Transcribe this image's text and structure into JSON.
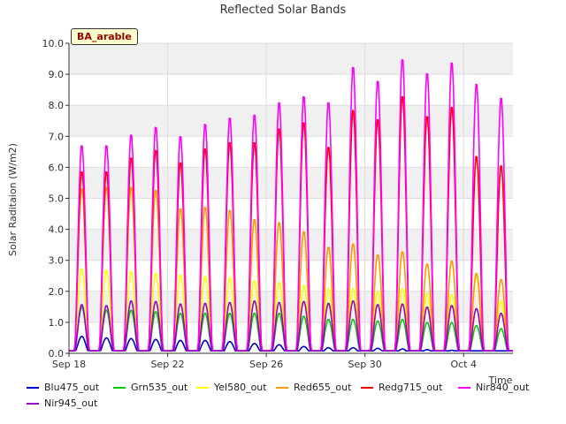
{
  "chart_data": {
    "type": "line",
    "title": "Reflected Solar Bands",
    "ylabel": "Solar Raditaion (W/m2)",
    "xlabel": "Time",
    "badge": "BA_arable",
    "ylim": [
      0,
      10
    ],
    "y_ticks": [
      "0.0",
      "1.0",
      "2.0",
      "3.0",
      "4.0",
      "5.0",
      "6.0",
      "7.0",
      "8.0",
      "9.0",
      "10.0"
    ],
    "x_ticks": [
      {
        "day": 0,
        "label": "Sep 18"
      },
      {
        "day": 4,
        "label": "Sep 22"
      },
      {
        "day": 8,
        "label": "Sep 26"
      },
      {
        "day": 12,
        "label": "Sep 30"
      },
      {
        "day": 16,
        "label": "Oct 4"
      }
    ],
    "days": [
      "Sep 18",
      "Sep 19",
      "Sep 20",
      "Sep 21",
      "Sep 22",
      "Sep 23",
      "Sep 24",
      "Sep 25",
      "Sep 26",
      "Sep 27",
      "Sep 28",
      "Sep 29",
      "Sep 30",
      "Oct 1",
      "Oct 2",
      "Oct 3",
      "Oct 4",
      "Oct 5"
    ],
    "grid": true,
    "legend_position": "bottom",
    "series": [
      {
        "name": "Blu475_out",
        "color": "#0000cc",
        "daily_peak": [
          0.55,
          0.5,
          0.48,
          0.45,
          0.42,
          0.42,
          0.38,
          0.32,
          0.28,
          0.22,
          0.18,
          0.18,
          0.16,
          0.14,
          0.12,
          0.1,
          0.08,
          0.06
        ]
      },
      {
        "name": "Grn535_out",
        "color": "#00cc00",
        "daily_peak": [
          1.5,
          1.4,
          1.4,
          1.35,
          1.3,
          1.3,
          1.3,
          1.3,
          1.3,
          1.2,
          1.1,
          1.1,
          1.05,
          1.1,
          1.0,
          1.0,
          0.9,
          0.8
        ]
      },
      {
        "name": "Yel580_out",
        "color": "#ffff00",
        "daily_peak": [
          2.75,
          2.7,
          2.65,
          2.6,
          2.55,
          2.5,
          2.45,
          2.35,
          2.3,
          2.2,
          2.1,
          2.1,
          2.0,
          2.1,
          1.95,
          1.9,
          2.5,
          1.7
        ]
      },
      {
        "name": "Red655_out",
        "color": "#ff9900",
        "daily_peak": [
          5.35,
          5.4,
          5.4,
          5.3,
          4.7,
          4.75,
          4.65,
          4.35,
          4.25,
          3.95,
          3.45,
          3.55,
          3.2,
          3.3,
          2.9,
          3.0,
          2.6,
          2.4
        ]
      },
      {
        "name": "Redg715_out",
        "color": "#ff0000",
        "daily_peak": [
          5.9,
          5.9,
          6.35,
          6.6,
          6.2,
          6.65,
          6.85,
          6.85,
          7.3,
          7.5,
          6.7,
          7.9,
          7.6,
          8.35,
          7.7,
          8.0,
          6.4,
          6.1
        ]
      },
      {
        "name": "Nir840_out",
        "color": "#ff00ff",
        "daily_peak": [
          6.75,
          6.75,
          7.1,
          7.35,
          7.05,
          7.45,
          7.65,
          7.75,
          8.15,
          8.35,
          8.15,
          9.3,
          8.85,
          9.55,
          9.1,
          9.45,
          8.75,
          8.3
        ]
      },
      {
        "name": "Nir945_out",
        "color": "#9900cc",
        "daily_peak": [
          1.58,
          1.55,
          1.7,
          1.68,
          1.6,
          1.62,
          1.65,
          1.7,
          1.65,
          1.68,
          1.62,
          1.7,
          1.58,
          1.6,
          1.5,
          1.55,
          1.45,
          1.3
        ]
      }
    ]
  }
}
